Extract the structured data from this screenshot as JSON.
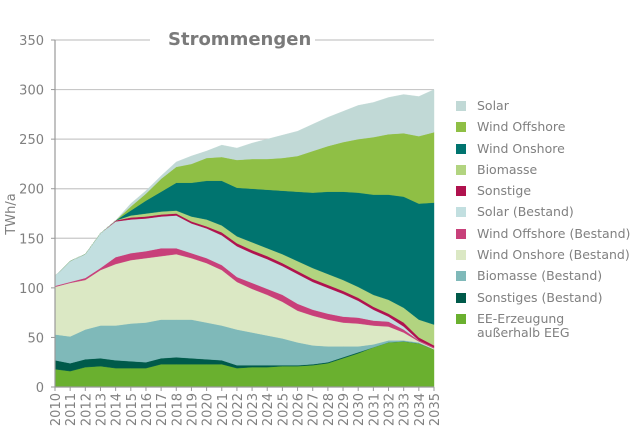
{
  "chart_data": {
    "type": "area",
    "stacked": true,
    "title": "Strommengen",
    "xlabel": "",
    "ylabel": "TWh/a",
    "ylim": [
      0,
      350
    ],
    "yticks": [
      0,
      50,
      100,
      150,
      200,
      250,
      300,
      350
    ],
    "grid": "horizontal",
    "legend_position": "right",
    "x": [
      "2010",
      "2011",
      "2012",
      "2013",
      "2014",
      "2015",
      "2016",
      "2017",
      "2018",
      "2019",
      "2020",
      "2021",
      "2022",
      "2023",
      "2024",
      "2025",
      "2026",
      "2027",
      "2028",
      "2029",
      "2030",
      "2031",
      "2032",
      "2033",
      "2034",
      "2035"
    ],
    "series": [
      {
        "name": "EE-Erzeugung\naußerhalb EEG",
        "color": "#6ab02f",
        "values": [
          18,
          16,
          20,
          21,
          19,
          19,
          19,
          23,
          23,
          23,
          23,
          23,
          19,
          20,
          20,
          21,
          21,
          22,
          24,
          29,
          34,
          40,
          45,
          46,
          44,
          38
        ]
      },
      {
        "name": "Sonstiges (Bestand)",
        "color": "#005a4a",
        "values": [
          9,
          8,
          8,
          8,
          8,
          7,
          6,
          6,
          7,
          6,
          5,
          4,
          3,
          2,
          2,
          1,
          1,
          1,
          1,
          1,
          1,
          0,
          0,
          0,
          0,
          0
        ]
      },
      {
        "name": "Biomasse (Bestand)",
        "color": "#7fb9b9",
        "values": [
          26,
          27,
          30,
          33,
          35,
          38,
          40,
          39,
          38,
          39,
          37,
          35,
          36,
          33,
          30,
          27,
          23,
          19,
          16,
          11,
          6,
          3,
          2,
          1,
          1,
          0
        ]
      },
      {
        "name": "Wind Onshore (Bestand)",
        "color": "#dbe8c4",
        "values": [
          48,
          54,
          50,
          56,
          62,
          64,
          65,
          64,
          66,
          62,
          60,
          56,
          48,
          44,
          41,
          37,
          32,
          30,
          27,
          24,
          23,
          19,
          14,
          8,
          1,
          1
        ]
      },
      {
        "name": "Wind Offshore (Bestand)",
        "color": "#c8407a",
        "values": [
          1,
          1,
          2,
          2,
          7,
          7,
          7,
          8,
          6,
          5,
          5,
          5,
          5,
          6,
          6,
          7,
          7,
          6,
          6,
          6,
          6,
          5,
          5,
          3,
          1,
          1
        ]
      },
      {
        "name": "Solar (Bestand)",
        "color": "#c2dfe0",
        "values": [
          10,
          21,
          24,
          35,
          36,
          34,
          33,
          32,
          33,
          30,
          30,
          30,
          31,
          30,
          30,
          29,
          30,
          28,
          26,
          23,
          17,
          11,
          5,
          3,
          0,
          0
        ]
      },
      {
        "name": "Sonstige",
        "color": "#b0124e",
        "values": [
          0,
          0,
          0,
          0,
          1,
          2,
          2,
          2,
          2,
          2,
          2,
          3,
          3,
          3,
          3,
          3,
          3,
          3,
          3,
          3,
          3,
          3,
          3,
          4,
          3,
          2
        ]
      },
      {
        "name": "Biomasse",
        "color": "#b2d480",
        "values": [
          0,
          0,
          0,
          0,
          0,
          2,
          3,
          3,
          3,
          5,
          7,
          7,
          7,
          8,
          8,
          9,
          10,
          11,
          11,
          11,
          11,
          12,
          14,
          15,
          18,
          21
        ]
      },
      {
        "name": "Wind Onshore",
        "color": "#00746f",
        "values": [
          0,
          0,
          0,
          0,
          0,
          5,
          13,
          20,
          28,
          34,
          39,
          45,
          49,
          54,
          59,
          64,
          70,
          76,
          83,
          89,
          95,
          101,
          106,
          112,
          117,
          123
        ]
      },
      {
        "name": "Wind Offshore",
        "color": "#8fbf45",
        "values": [
          0,
          0,
          0,
          0,
          0,
          4,
          7,
          13,
          16,
          19,
          23,
          24,
          28,
          30,
          31,
          33,
          36,
          42,
          46,
          50,
          54,
          58,
          61,
          64,
          68,
          71
        ]
      },
      {
        "name": "Solar",
        "color": "#c1d9d6",
        "values": [
          0,
          0,
          0,
          0,
          0,
          3,
          3,
          3,
          5,
          8,
          7,
          12,
          12,
          16,
          20,
          23,
          25,
          27,
          29,
          31,
          34,
          35,
          37,
          39,
          40,
          43
        ]
      }
    ]
  }
}
